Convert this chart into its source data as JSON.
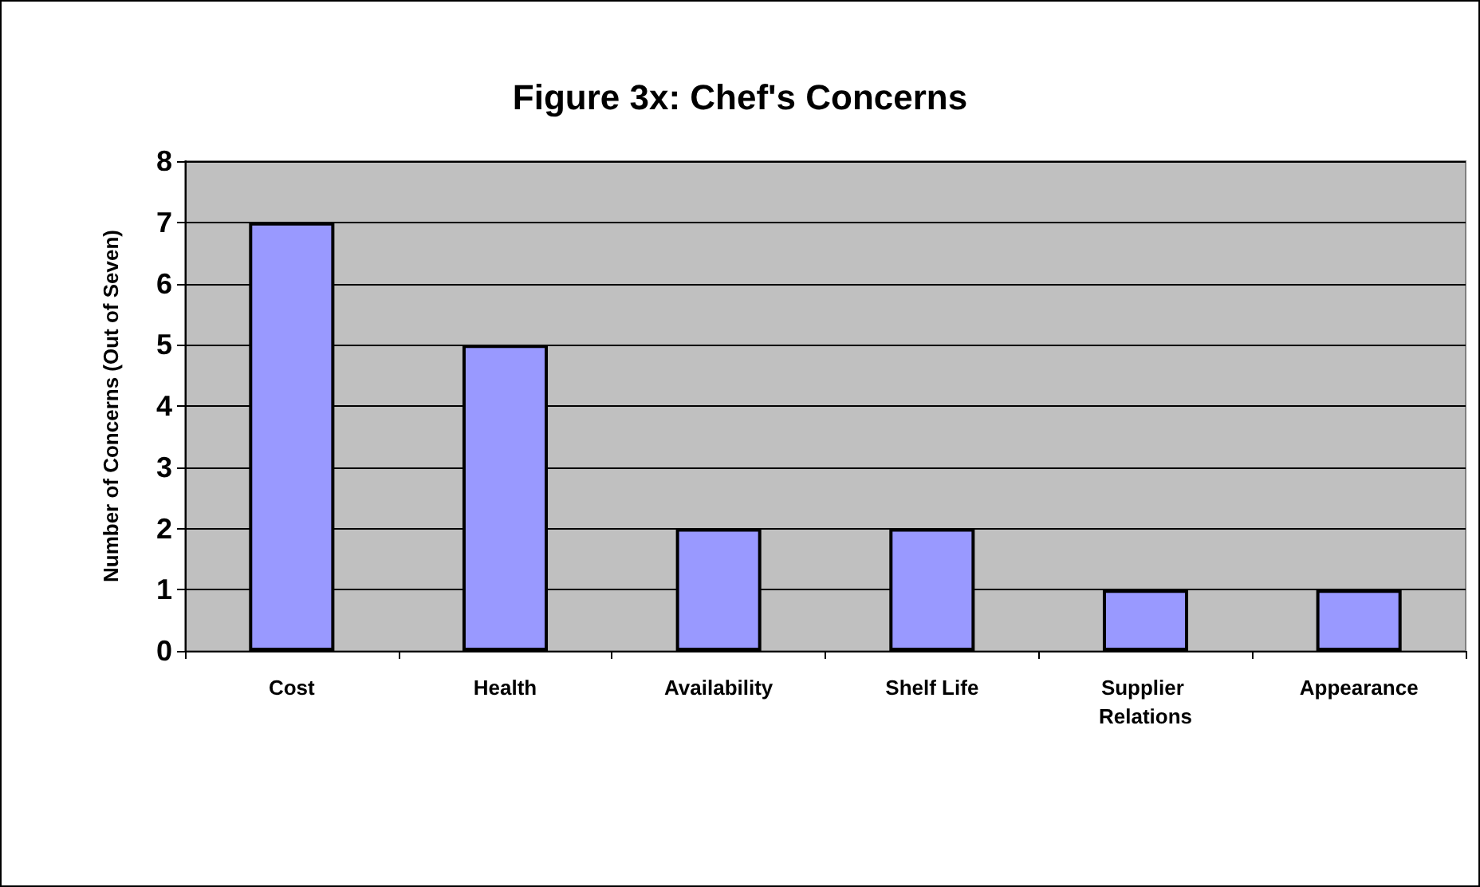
{
  "chart_data": {
    "type": "bar",
    "title": "Figure 3x: Chef's Concerns",
    "ylabel": "Number of Concerns (Out of Seven)",
    "categories": [
      "Cost",
      "Health",
      "Availability",
      "Shelf Life",
      "Supplier Relations",
      "Appearance"
    ],
    "values": [
      7,
      5,
      2,
      2,
      1,
      1
    ],
    "color": "#9999ff",
    "ylim": [
      0,
      8
    ],
    "yticks": [
      0,
      1,
      2,
      3,
      4,
      5,
      6,
      7,
      8
    ],
    "grid": "y"
  }
}
